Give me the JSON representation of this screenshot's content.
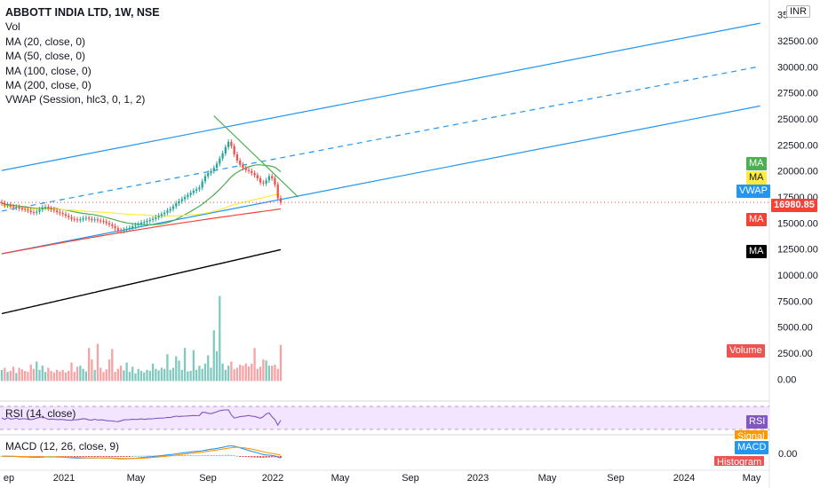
{
  "chart_data": {
    "type": "candlestick",
    "symbol": "ABBOTT INDIA LTD, 1W, NSE",
    "currency": "INR",
    "indicators": [
      "Vol",
      "MA (20, close, 0)",
      "MA (50, close, 0)",
      "MA (100, close, 0)",
      "MA (200, close, 0)",
      "VWAP (Session, hlc3, 0, 1, 2)"
    ],
    "last_price": "16980.85",
    "price_ticks": [
      "35",
      "32500.00",
      "30000.00",
      "27500.00",
      "25000.00",
      "22500.00",
      "20000.00",
      "17500.00",
      "15000.00",
      "12500.00",
      "10000.00",
      "7500.00",
      "5000.00",
      "2500.00",
      "0.00"
    ],
    "x_ticks": [
      "ep",
      "2021",
      "May",
      "Sep",
      "2022",
      "May",
      "Sep",
      "2023",
      "May",
      "Sep",
      "2024",
      "May"
    ],
    "price_range": [
      -1500,
      36000
    ],
    "candle_closes": [
      16920,
      16700,
      16750,
      16600,
      16500,
      16550,
      16400,
      16350,
      16300,
      16200,
      16050,
      16000,
      16100,
      16300,
      16500,
      16550,
      16400,
      16300,
      16200,
      16050,
      15950,
      15850,
      15700,
      15550,
      15400,
      15350,
      15300,
      15350,
      15450,
      15500,
      15400,
      15300,
      15350,
      15250,
      15200,
      15150,
      15000,
      14850,
      14700,
      14500,
      14300,
      14250,
      14350,
      14450,
      14550,
      14700,
      14800,
      14900,
      15050,
      15100,
      15200,
      15300,
      15400,
      15550,
      15700,
      15850,
      16000,
      16200,
      16350,
      16600,
      16900,
      17100,
      17300,
      17500,
      17700,
      17900,
      18100,
      18250,
      18400,
      19000,
      19500,
      19800,
      20000,
      20300,
      20700,
      21200,
      21700,
      22300,
      22800,
      22400,
      21600,
      21000,
      20600,
      20300,
      20100,
      20000,
      19800,
      19600,
      19300,
      18900,
      18800,
      19100,
      19500,
      19300,
      18700,
      17400,
      16980
    ],
    "volumes": [
      900,
      1100,
      700,
      800,
      1200,
      600,
      1100,
      950,
      800,
      700,
      1400,
      1000,
      1700,
      900,
      1300,
      700,
      1100,
      800,
      650,
      900,
      750,
      900,
      650,
      800,
      1600,
      700,
      1200,
      1300,
      1000,
      750,
      3000,
      1900,
      900,
      3400,
      1100,
      700,
      950,
      1900,
      2900,
      700,
      1000,
      1300,
      850,
      1600,
      700,
      1200,
      550,
      1000,
      800,
      650,
      900,
      800,
      1500,
      1000,
      850,
      1100,
      1000,
      2400,
      900,
      1100,
      2200,
      1800,
      900,
      3000,
      750,
      800,
      2800,
      900,
      1300,
      1000,
      1500,
      2300,
      1100,
      4700,
      2700,
      8000,
      1500,
      900,
      1300,
      1700,
      950,
      1100,
      1400,
      1300,
      1500,
      1250,
      1500,
      3000,
      1000,
      1200,
      1900,
      1800,
      1300,
      1300,
      1400,
      1000,
      3300
    ],
    "rsi_label": "RSI (14, close)",
    "macd_label": "MACD (12, 26, close, 9)",
    "tags": {
      "ma20": "MA",
      "ma50": "MA",
      "vwap": "VWAP",
      "ma100": "MA",
      "ma200": "MA",
      "volume": "Volume",
      "rsi": "RSI",
      "signal": "Signal",
      "macd": "MACD",
      "histogram": "Histogram",
      "macd_zero": "0.00"
    },
    "colors": {
      "up": "#26a69a",
      "down": "#ef5350",
      "ma20": "#4caf50",
      "ma50": "#ffeb3b",
      "vwap": "#2196f3",
      "ma100": "#f44336",
      "ma200": "#000000",
      "channel": "#2196f3",
      "trend": "#4caf50",
      "rsi": "#7e57c2",
      "rsi_band": "#f3e5ff",
      "macd": "#2196f3",
      "signal": "#ff9800",
      "last_price": "#f44336"
    }
  }
}
